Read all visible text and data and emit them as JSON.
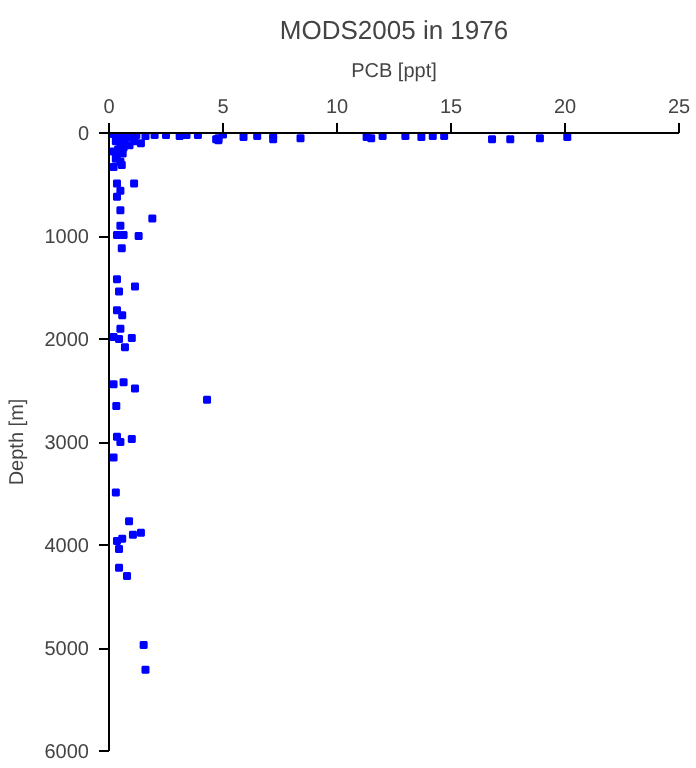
{
  "chart_data": {
    "type": "scatter",
    "title": "MODS2005 in 1976",
    "xlabel": "PCB [ppt]",
    "ylabel": "Depth [m]",
    "xlim": [
      0,
      25
    ],
    "xticks": [
      0,
      5,
      10,
      15,
      20,
      25
    ],
    "ylim": [
      6000,
      0
    ],
    "yticks": [
      0,
      1000,
      2000,
      3000,
      4000,
      5000,
      6000
    ],
    "grid": false,
    "marker": "square",
    "series": [
      {
        "color": "#0000ff",
        "x": [
          2.5,
          3.1,
          3.4,
          3.9,
          4.8,
          4.7,
          5.9,
          6.5,
          7.2,
          7.2,
          8.4,
          11.3,
          11.5,
          12.0,
          13.0,
          13.7,
          14.2,
          14.7,
          16.8,
          17.6,
          18.9,
          20.1,
          4.8,
          5.0,
          0.2,
          0.4,
          0.6,
          0.8,
          1.0,
          1.2,
          1.6,
          2.0,
          0.3,
          0.5,
          0.7,
          0.9,
          1.1,
          0.2,
          0.4,
          0.6,
          0.3,
          0.5,
          0.2,
          0.64,
          1.4,
          0.35,
          0.56,
          1.1,
          0.35,
          0.5,
          0.35,
          0.5,
          1.9,
          0.5,
          0.35,
          0.64,
          1.3,
          0.56,
          0.35,
          1.14,
          0.44,
          0.35,
          0.58,
          0.5,
          0.2,
          0.44,
          1.0,
          0.7,
          0.2,
          0.64,
          1.14,
          0.32,
          4.3,
          0.35,
          0.5,
          1.0,
          0.2,
          0.3,
          0.88,
          1.05,
          1.4,
          0.35,
          0.58,
          0.44,
          0.44,
          0.79,
          1.52,
          1.6
        ],
        "values": [
          20,
          30,
          20,
          20,
          50,
          60,
          40,
          30,
          20,
          60,
          50,
          40,
          50,
          30,
          30,
          40,
          30,
          30,
          60,
          60,
          50,
          40,
          70,
          14,
          10,
          20,
          30,
          20,
          40,
          20,
          30,
          20,
          80,
          100,
          90,
          120,
          80,
          180,
          160,
          200,
          250,
          280,
          330,
          140,
          100,
          210,
          310,
          490,
          490,
          560,
          620,
          750,
          830,
          900,
          990,
          990,
          1000,
          1120,
          1420,
          1490,
          1540,
          1720,
          1770,
          1900,
          1980,
          2000,
          1990,
          2080,
          2440,
          2420,
          2480,
          2650,
          2590,
          2950,
          3000,
          2970,
          3150,
          3490,
          3770,
          3900,
          3880,
          3960,
          3940,
          4040,
          4220,
          4300,
          4970,
          5210
        ]
      }
    ]
  }
}
